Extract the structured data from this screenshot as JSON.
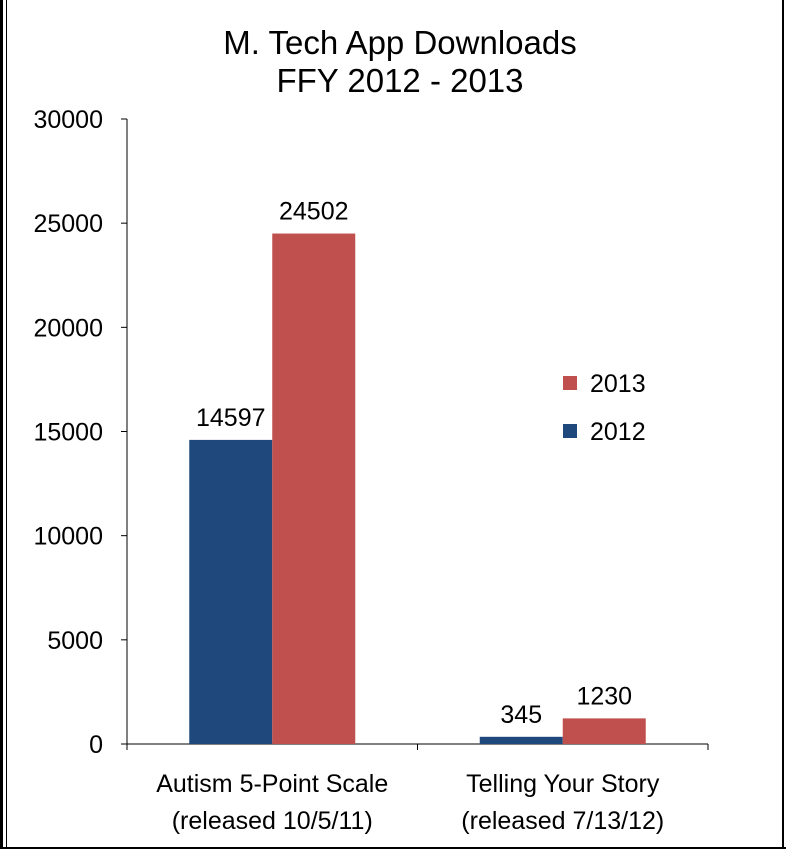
{
  "chart_data": {
    "type": "bar",
    "title_lines": [
      "M. Tech App Downloads",
      "FFY 2012 - 2013"
    ],
    "categories": [
      [
        "Autism 5-Point Scale",
        "(released 10/5/11)"
      ],
      [
        "Telling Your Story",
        "(released 7/13/12)"
      ]
    ],
    "series": [
      {
        "name": "2012",
        "values": [
          14597,
          345
        ],
        "color": "#1F497D"
      },
      {
        "name": "2013",
        "values": [
          24502,
          1230
        ],
        "color": "#C0504D"
      }
    ],
    "ylim": [
      0,
      30000
    ],
    "yticks": [
      0,
      5000,
      10000,
      15000,
      20000,
      25000,
      30000
    ],
    "legend_order": [
      "2013",
      "2012"
    ],
    "legend_position": "right",
    "grid": false
  }
}
